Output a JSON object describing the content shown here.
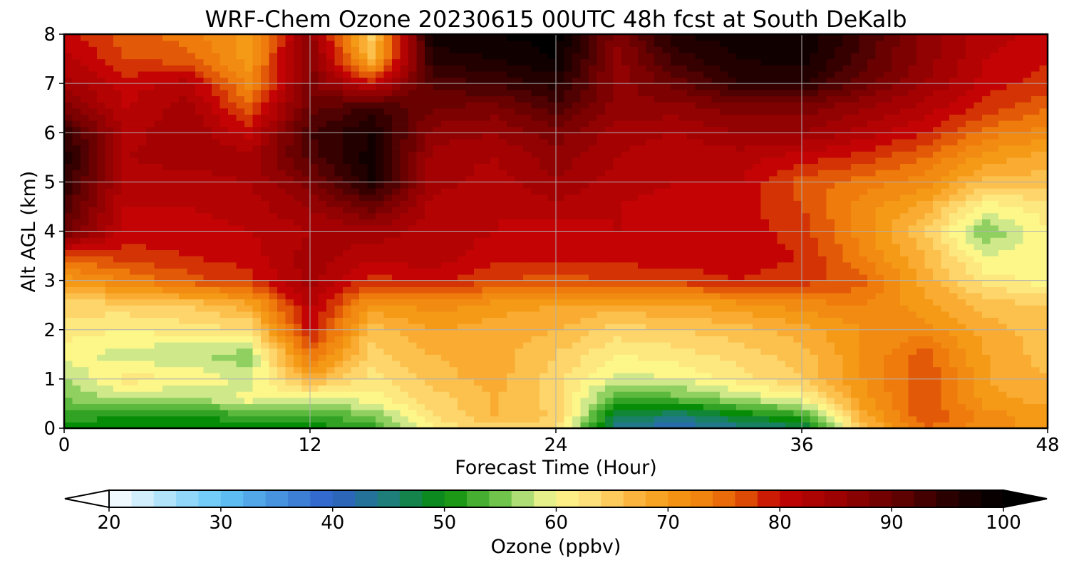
{
  "chart_data": {
    "type": "heatmap",
    "title": "WRF-Chem Ozone  20230615 00UTC 48h fcst at South DeKalb",
    "xlabel": "Forecast Time (Hour)",
    "ylabel": "Alt AGL (km)",
    "xlim": [
      0,
      48
    ],
    "ylim": [
      0,
      8
    ],
    "xticks": [
      "0",
      "12",
      "24",
      "36",
      "48"
    ],
    "yticks": [
      "0",
      "1",
      "2",
      "3",
      "4",
      "5",
      "6",
      "7",
      "8"
    ],
    "grid": true,
    "x": [
      0,
      3,
      6,
      9,
      12,
      15,
      18,
      21,
      24,
      27,
      30,
      33,
      36,
      39,
      42,
      45,
      48
    ],
    "y": [
      0,
      0.25,
      0.6,
      1,
      1.5,
      2,
      2.5,
      3,
      3.5,
      4,
      4.5,
      5,
      5.5,
      6,
      6.5,
      7,
      7.5,
      8
    ],
    "z": [
      [
        50,
        49,
        49,
        50,
        50,
        52,
        61,
        64,
        63,
        44,
        41,
        44,
        46,
        66,
        75,
        72,
        70
      ],
      [
        52,
        51,
        51,
        52,
        52,
        55,
        63,
        67,
        65,
        47,
        45,
        49,
        52,
        68,
        77,
        72,
        70
      ],
      [
        55,
        57,
        56,
        60,
        58,
        60,
        64,
        67,
        64,
        53,
        54,
        57,
        60,
        70,
        77,
        70,
        68
      ],
      [
        57,
        62,
        61,
        58,
        68,
        62,
        66,
        68,
        64,
        58,
        59,
        62,
        65,
        71,
        77,
        69,
        67
      ],
      [
        60,
        58,
        57,
        56,
        75,
        64,
        67,
        68,
        65,
        61,
        62,
        64,
        66,
        71,
        76,
        69,
        66
      ],
      [
        62,
        61,
        62,
        63,
        80,
        66,
        69,
        68,
        67,
        64,
        65,
        66,
        68,
        71,
        72,
        68,
        66
      ],
      [
        64,
        64,
        65,
        68,
        82,
        70,
        72,
        70,
        69,
        68,
        69,
        70,
        72,
        73,
        70,
        66,
        65
      ],
      [
        70,
        73,
        76,
        78,
        84,
        78,
        80,
        77,
        76,
        77,
        78,
        79,
        78,
        76,
        68,
        62,
        60
      ],
      [
        76,
        78,
        79,
        80,
        84,
        82,
        82,
        80,
        80,
        80,
        80,
        80,
        79,
        73,
        67,
        59,
        61
      ],
      [
        90,
        80,
        80,
        81,
        83,
        84,
        82,
        81,
        80,
        81,
        80,
        80,
        78,
        72,
        65,
        55,
        61
      ],
      [
        92,
        81,
        81,
        82,
        85,
        90,
        82,
        81,
        82,
        81,
        80,
        80,
        77,
        72,
        68,
        60,
        62
      ],
      [
        95,
        82,
        82,
        83,
        88,
        97,
        84,
        82,
        85,
        82,
        81,
        81,
        76,
        74,
        72,
        66,
        66
      ],
      [
        96,
        83,
        84,
        84,
        92,
        98,
        84,
        83,
        86,
        83,
        81,
        82,
        80,
        78,
        75,
        70,
        68
      ],
      [
        95,
        82,
        85,
        80,
        93,
        97,
        86,
        85,
        88,
        84,
        83,
        85,
        85,
        82,
        79,
        74,
        72
      ],
      [
        88,
        81,
        84,
        76,
        90,
        94,
        89,
        88,
        92,
        86,
        86,
        88,
        88,
        85,
        82,
        78,
        75
      ],
      [
        84,
        80,
        82,
        72,
        88,
        80,
        92,
        93,
        96,
        86,
        90,
        95,
        95,
        90,
        85,
        80,
        78
      ],
      [
        82,
        77,
        76,
        70,
        88,
        67,
        96,
        97,
        99,
        86,
        94,
        97,
        98,
        92,
        86,
        81,
        79
      ],
      [
        80,
        76,
        74,
        70,
        86,
        64,
        98,
        99,
        100,
        88,
        97,
        98,
        99,
        93,
        86,
        82,
        80
      ]
    ],
    "colorbar": {
      "label": "Ozone  (ppbv)",
      "min": 20,
      "max": 100,
      "ticks": [
        "20",
        "30",
        "40",
        "50",
        "60",
        "70",
        "80",
        "90",
        "100"
      ],
      "extend": "both",
      "colormap": [
        [
          20,
          "#ffffff"
        ],
        [
          30,
          "#62c6f6"
        ],
        [
          40,
          "#2e60c8"
        ],
        [
          45,
          "#1e7e7a"
        ],
        [
          50,
          "#078c08"
        ],
        [
          55,
          "#70c44c"
        ],
        [
          58,
          "#cfe98a"
        ],
        [
          60,
          "#fdf78a"
        ],
        [
          63,
          "#fde07a"
        ],
        [
          67,
          "#fbb53e"
        ],
        [
          70,
          "#f59a16"
        ],
        [
          74,
          "#ef7b0c"
        ],
        [
          77,
          "#dc4a06"
        ],
        [
          80,
          "#c40404"
        ],
        [
          85,
          "#9c0202"
        ],
        [
          90,
          "#6a0101"
        ],
        [
          95,
          "#2a0000"
        ],
        [
          100,
          "#000000"
        ]
      ]
    }
  }
}
